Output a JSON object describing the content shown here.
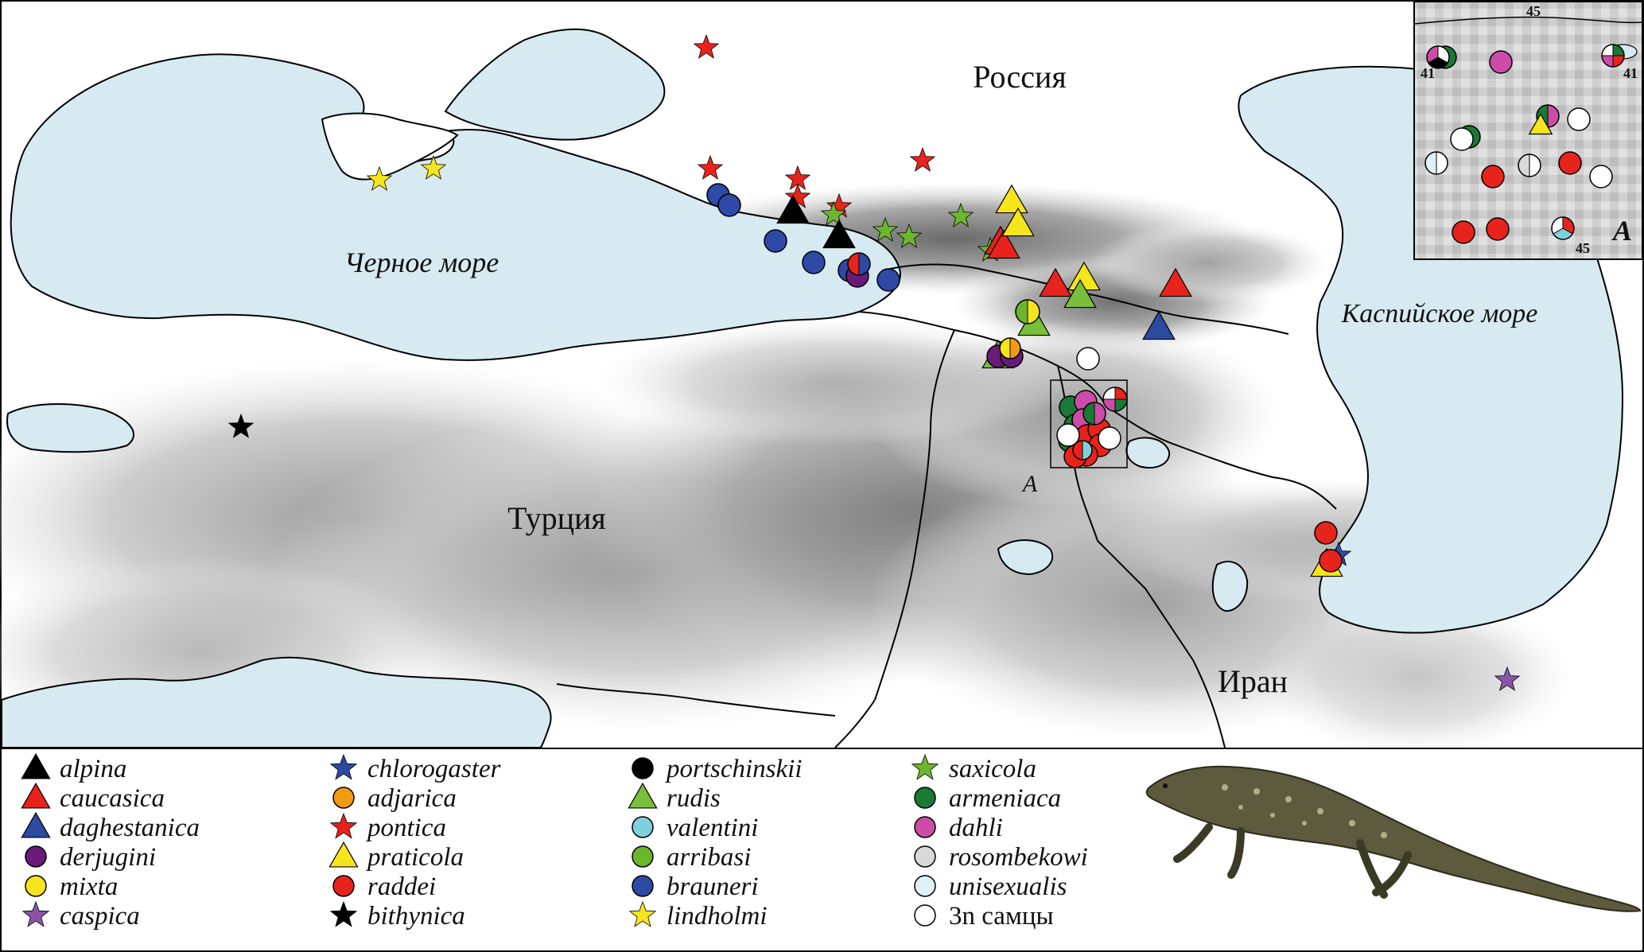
{
  "labels": {
    "russia": "Россия",
    "turkey": "Турция",
    "iran": "Иран",
    "black_sea": "Черное море",
    "caspian_sea": "Каспийское море",
    "inset_marker": "A",
    "inset_letter": "A",
    "inset_coord_45_top": "45",
    "inset_coord_41_left": "41",
    "inset_coord_41_right": "41",
    "inset_coord_45_bottom": "45"
  },
  "colors": {
    "sea": "#d7eaf1",
    "land": "#ffffff",
    "black": "#000000",
    "red": "#e8231b",
    "blue": "#2b4aa0",
    "purple": "#6a1b7a",
    "yellow": "#f6e41c",
    "violet": "#8a55a6",
    "orange": "#f39a12",
    "green": "#79bf3a",
    "cyan": "#7fd0dc",
    "lime": "#6cb52c",
    "navy": "#2e49a6",
    "dark_green": "#187a34",
    "magenta": "#cc4ca8",
    "light_gray": "#d9d9d9",
    "pale_blue": "#dff1f5",
    "white": "#ffffff"
  },
  "legend": [
    {
      "label": "alpina",
      "shape": "triangle",
      "color": "#000000"
    },
    {
      "label": "caucasica",
      "shape": "triangle",
      "color": "#e8231b"
    },
    {
      "label": "daghestanica",
      "shape": "triangle",
      "color": "#2b4aa0"
    },
    {
      "label": "derjugini",
      "shape": "circle",
      "color": "#6a1b7a"
    },
    {
      "label": "mixta",
      "shape": "circle",
      "color": "#f6e41c"
    },
    {
      "label": "caspica",
      "shape": "star",
      "color": "#8a55a6"
    },
    {
      "label": "chlorogaster",
      "shape": "star",
      "color": "#2b4aa0"
    },
    {
      "label": "adjarica",
      "shape": "circle",
      "color": "#f39a12"
    },
    {
      "label": "pontica",
      "shape": "star",
      "color": "#e8231b"
    },
    {
      "label": "praticola",
      "shape": "triangle",
      "color": "#f6e41c"
    },
    {
      "label": "raddei",
      "shape": "circle",
      "color": "#e8231b"
    },
    {
      "label": "bithynica",
      "shape": "star",
      "color": "#000000"
    },
    {
      "label": "portschinskii",
      "shape": "circle",
      "color": "#000000"
    },
    {
      "label": "rudis",
      "shape": "triangle",
      "color": "#79bf3a"
    },
    {
      "label": "valentini",
      "shape": "circle",
      "color": "#7fd0dc"
    },
    {
      "label": "arribasi",
      "shape": "circle",
      "color": "#6cb52c"
    },
    {
      "label": "brauneri",
      "shape": "circle",
      "color": "#2e49a6"
    },
    {
      "label": "lindholmi",
      "shape": "star",
      "color": "#f6e41c"
    },
    {
      "label": "saxicola",
      "shape": "star",
      "color": "#6cb52c"
    },
    {
      "label": "armeniaca",
      "shape": "circle",
      "color": "#187a34"
    },
    {
      "label": "dahli",
      "shape": "circle",
      "color": "#cc4ca8"
    },
    {
      "label": "rosombekowi",
      "shape": "circle",
      "color": "#d9d9d9"
    },
    {
      "label": "unisexualis",
      "shape": "circle",
      "color": "#dff1f5"
    },
    {
      "label": "3n самцы",
      "shape": "circle",
      "color": "#ffffff",
      "upright": true
    }
  ]
}
